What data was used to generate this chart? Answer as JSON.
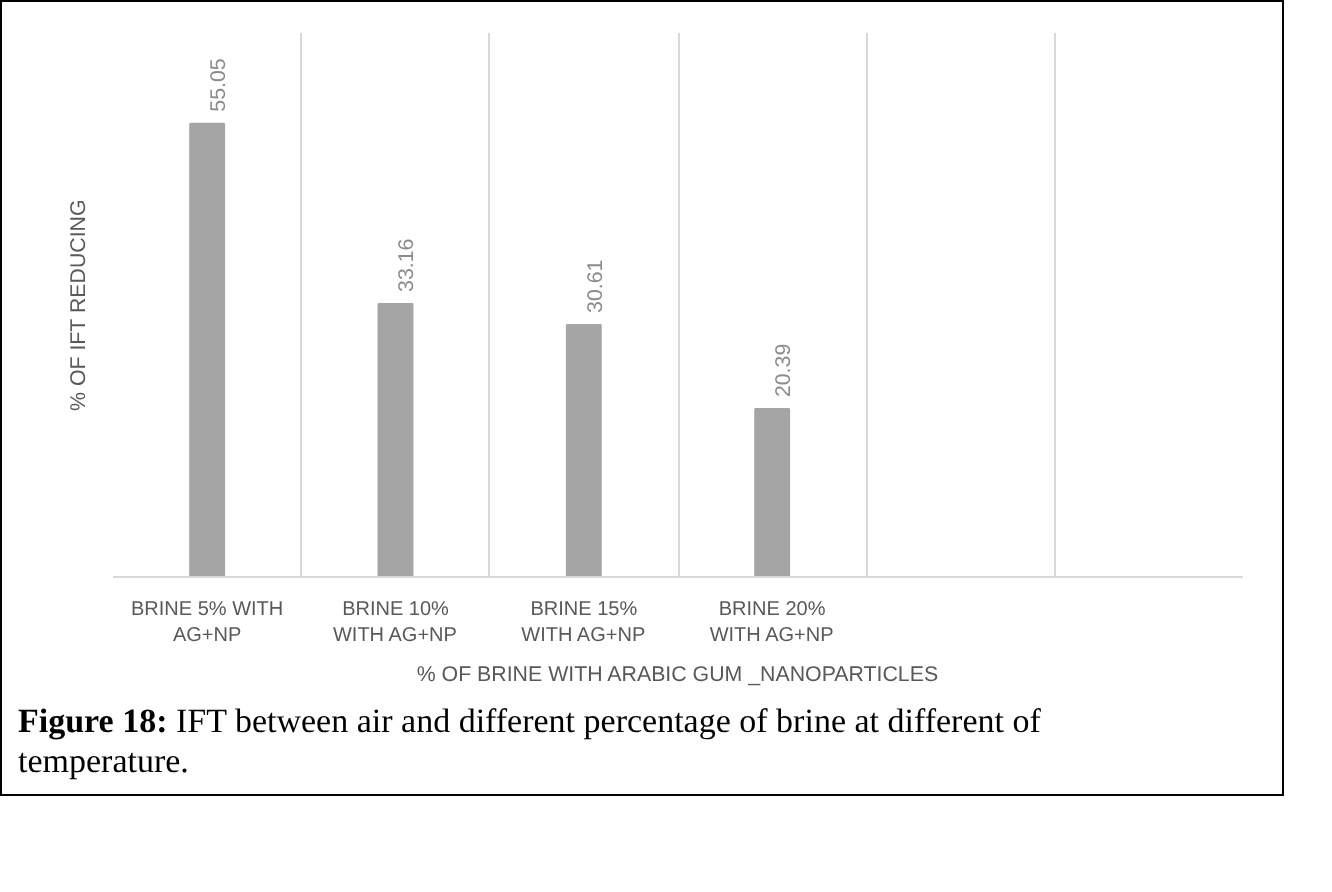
{
  "chart_data": {
    "type": "bar",
    "categories": [
      "BRINE 5% WITH AG+NP",
      "BRINE 10% WITH AG+NP",
      "BRINE 15% WITH AG+NP",
      "BRINE 20% WITH AG+NP",
      null,
      null
    ],
    "values": [
      55.05,
      33.16,
      30.61,
      20.39,
      null,
      null
    ],
    "color": "#a5a5a5",
    "data_labels": true,
    "xlabel": "% OF BRINE WITH ARABIC GUM _NANOPARTICLES",
    "ylabel": "% OF IFT REDUCING",
    "grid": "x",
    "annotations": [
      "Figure 18: IFT between air and different percentage of brine at different of temperature."
    ]
  }
}
